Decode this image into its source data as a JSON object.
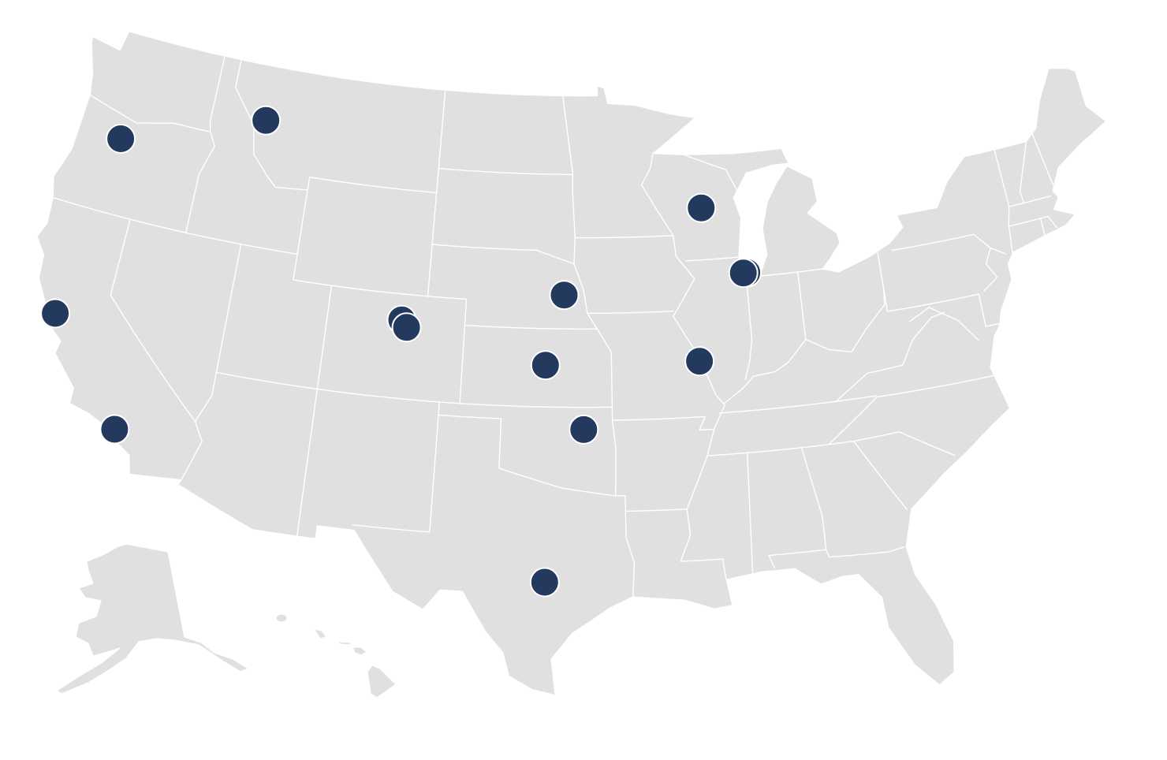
{
  "map": {
    "region": "United States",
    "projection": "albers-usa",
    "land_color": "#e0e0e0",
    "border_color": "#ffffff",
    "background_color": "#ffffff"
  },
  "markers": {
    "color": "#233a5e",
    "stroke_color": "#ffffff",
    "points": [
      {
        "lat": 44.9,
        "lon": -121.6
      },
      {
        "lat": 46.87,
        "lon": -113.99
      },
      {
        "lat": 37.77,
        "lon": -122.42
      },
      {
        "lat": 34.05,
        "lon": -118.24
      },
      {
        "lat": 40.01,
        "lon": -105.27
      },
      {
        "lat": 39.74,
        "lon": -104.99
      },
      {
        "lat": 41.3,
        "lon": -97.0
      },
      {
        "lat": 38.6,
        "lon": -97.9
      },
      {
        "lat": 36.15,
        "lon": -95.99
      },
      {
        "lat": 30.27,
        "lon": -97.74
      },
      {
        "lat": 44.5,
        "lon": -89.6
      },
      {
        "lat": 41.88,
        "lon": -87.45
      },
      {
        "lat": 41.88,
        "lon": -87.63
      },
      {
        "lat": 38.63,
        "lon": -90.2
      }
    ]
  }
}
